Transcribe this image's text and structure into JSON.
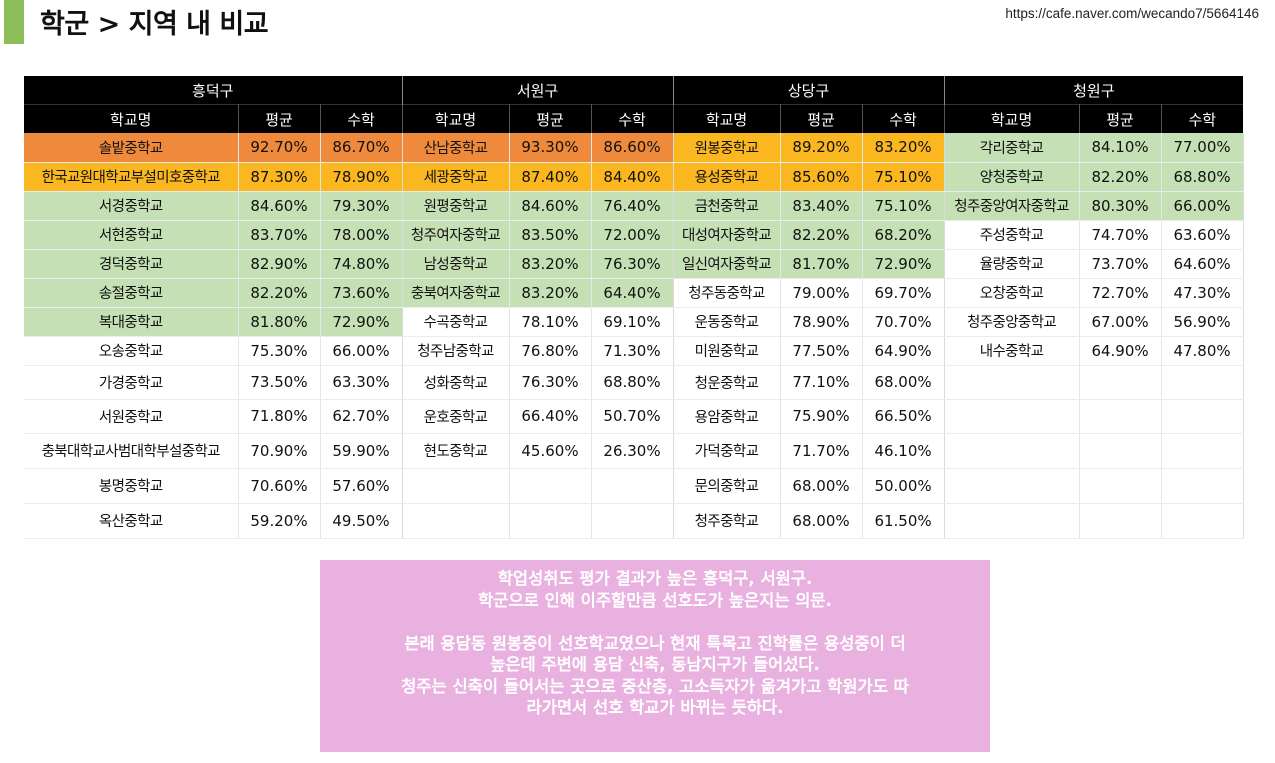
{
  "header": {
    "title": "학군 > 지역 내 비교",
    "source_url": "https://cafe.naver.com/wecando7/5664146"
  },
  "colors": {
    "accent_bar": "#8cbf5a",
    "highlight_orange": "#ef8a3c",
    "highlight_yellow": "#fbb720",
    "highlight_green": "#c5e0b4",
    "note_background": "#e9b1df",
    "header_background": "#000000"
  },
  "table": {
    "column_headers": [
      "학교명",
      "평균",
      "수학"
    ],
    "districts": [
      {
        "name": "흥덕구",
        "rows": [
          {
            "school": "솔밭중학교",
            "avg": "92.70%",
            "math": "86.70%",
            "highlight": "orange"
          },
          {
            "school": "한국교원대학교부설미호중학교",
            "avg": "87.30%",
            "math": "78.90%",
            "highlight": "yellow"
          },
          {
            "school": "서경중학교",
            "avg": "84.60%",
            "math": "79.30%",
            "highlight": "green"
          },
          {
            "school": "서현중학교",
            "avg": "83.70%",
            "math": "78.00%",
            "highlight": "green"
          },
          {
            "school": "경덕중학교",
            "avg": "82.90%",
            "math": "74.80%",
            "highlight": "green"
          },
          {
            "school": "송절중학교",
            "avg": "82.20%",
            "math": "73.60%",
            "highlight": "green"
          },
          {
            "school": "복대중학교",
            "avg": "81.80%",
            "math": "72.90%",
            "highlight": "green"
          },
          {
            "school": "오송중학교",
            "avg": "75.30%",
            "math": "66.00%",
            "highlight": "none"
          },
          {
            "school": "가경중학교",
            "avg": "73.50%",
            "math": "63.30%",
            "highlight": "none"
          },
          {
            "school": "서원중학교",
            "avg": "71.80%",
            "math": "62.70%",
            "highlight": "none"
          },
          {
            "school": "충북대학교사범대학부설중학교",
            "avg": "70.90%",
            "math": "59.90%",
            "highlight": "none"
          },
          {
            "school": "봉명중학교",
            "avg": "70.60%",
            "math": "57.60%",
            "highlight": "none"
          },
          {
            "school": "옥산중학교",
            "avg": "59.20%",
            "math": "49.50%",
            "highlight": "none"
          }
        ]
      },
      {
        "name": "서원구",
        "rows": [
          {
            "school": "산남중학교",
            "avg": "93.30%",
            "math": "86.60%",
            "highlight": "orange"
          },
          {
            "school": "세광중학교",
            "avg": "87.40%",
            "math": "84.40%",
            "highlight": "yellow"
          },
          {
            "school": "원평중학교",
            "avg": "84.60%",
            "math": "76.40%",
            "highlight": "green"
          },
          {
            "school": "청주여자중학교",
            "avg": "83.50%",
            "math": "72.00%",
            "highlight": "green"
          },
          {
            "school": "남성중학교",
            "avg": "83.20%",
            "math": "76.30%",
            "highlight": "green"
          },
          {
            "school": "충북여자중학교",
            "avg": "83.20%",
            "math": "64.40%",
            "highlight": "green"
          },
          {
            "school": "수곡중학교",
            "avg": "78.10%",
            "math": "69.10%",
            "highlight": "none"
          },
          {
            "school": "청주남중학교",
            "avg": "76.80%",
            "math": "71.30%",
            "highlight": "none"
          },
          {
            "school": "성화중학교",
            "avg": "76.30%",
            "math": "68.80%",
            "highlight": "none"
          },
          {
            "school": "운호중학교",
            "avg": "66.40%",
            "math": "50.70%",
            "highlight": "none"
          },
          {
            "school": "현도중학교",
            "avg": "45.60%",
            "math": "26.30%",
            "highlight": "none"
          },
          {
            "school": "",
            "avg": "",
            "math": "",
            "highlight": "none"
          },
          {
            "school": "",
            "avg": "",
            "math": "",
            "highlight": "none"
          }
        ]
      },
      {
        "name": "상당구",
        "rows": [
          {
            "school": "원봉중학교",
            "avg": "89.20%",
            "math": "83.20%",
            "highlight": "yellow"
          },
          {
            "school": "용성중학교",
            "avg": "85.60%",
            "math": "75.10%",
            "highlight": "yellow"
          },
          {
            "school": "금천중학교",
            "avg": "83.40%",
            "math": "75.10%",
            "highlight": "green"
          },
          {
            "school": "대성여자중학교",
            "avg": "82.20%",
            "math": "68.20%",
            "highlight": "green"
          },
          {
            "school": "일신여자중학교",
            "avg": "81.70%",
            "math": "72.90%",
            "highlight": "green"
          },
          {
            "school": "청주동중학교",
            "avg": "79.00%",
            "math": "69.70%",
            "highlight": "none"
          },
          {
            "school": "운동중학교",
            "avg": "78.90%",
            "math": "70.70%",
            "highlight": "none"
          },
          {
            "school": "미원중학교",
            "avg": "77.50%",
            "math": "64.90%",
            "highlight": "none"
          },
          {
            "school": "청운중학교",
            "avg": "77.10%",
            "math": "68.00%",
            "highlight": "none"
          },
          {
            "school": "용암중학교",
            "avg": "75.90%",
            "math": "66.50%",
            "highlight": "none"
          },
          {
            "school": "가덕중학교",
            "avg": "71.70%",
            "math": "46.10%",
            "highlight": "none"
          },
          {
            "school": "문의중학교",
            "avg": "68.00%",
            "math": "50.00%",
            "highlight": "none"
          },
          {
            "school": "청주중학교",
            "avg": "68.00%",
            "math": "61.50%",
            "highlight": "none"
          }
        ]
      },
      {
        "name": "청원구",
        "rows": [
          {
            "school": "각리중학교",
            "avg": "84.10%",
            "math": "77.00%",
            "highlight": "green"
          },
          {
            "school": "양청중학교",
            "avg": "82.20%",
            "math": "68.80%",
            "highlight": "green"
          },
          {
            "school": "청주중앙여자중학교",
            "avg": "80.30%",
            "math": "66.00%",
            "highlight": "green"
          },
          {
            "school": "주성중학교",
            "avg": "74.70%",
            "math": "63.60%",
            "highlight": "none"
          },
          {
            "school": "율량중학교",
            "avg": "73.70%",
            "math": "64.60%",
            "highlight": "none"
          },
          {
            "school": "오창중학교",
            "avg": "72.70%",
            "math": "47.30%",
            "highlight": "none"
          },
          {
            "school": "청주중앙중학교",
            "avg": "67.00%",
            "math": "56.90%",
            "highlight": "none"
          },
          {
            "school": "내수중학교",
            "avg": "64.90%",
            "math": "47.80%",
            "highlight": "none"
          },
          {
            "school": "",
            "avg": "",
            "math": "",
            "highlight": "none"
          },
          {
            "school": "",
            "avg": "",
            "math": "",
            "highlight": "none"
          },
          {
            "school": "",
            "avg": "",
            "math": "",
            "highlight": "none"
          },
          {
            "school": "",
            "avg": "",
            "math": "",
            "highlight": "none"
          },
          {
            "school": "",
            "avg": "",
            "math": "",
            "highlight": "none"
          }
        ]
      }
    ]
  },
  "note": {
    "lines": [
      "학업성취도 평가 결과가 높은 흥덕구, 서원구.",
      "학군으로 인해 이주할만큼 선호도가 높은지는 의문.",
      "",
      "본래 용담동 원봉중이 선호학교였으나 현재 특목고 진학률은 용성중이 더",
      "높은데 주변에 용담 신축, 동남지구가 들어섰다.",
      "청주는 신축이 들어서는 곳으로 중산층, 고소득자가 옮겨가고 학원가도 따",
      "라가면서 선호 학교가 바뀌는 듯하다."
    ]
  }
}
